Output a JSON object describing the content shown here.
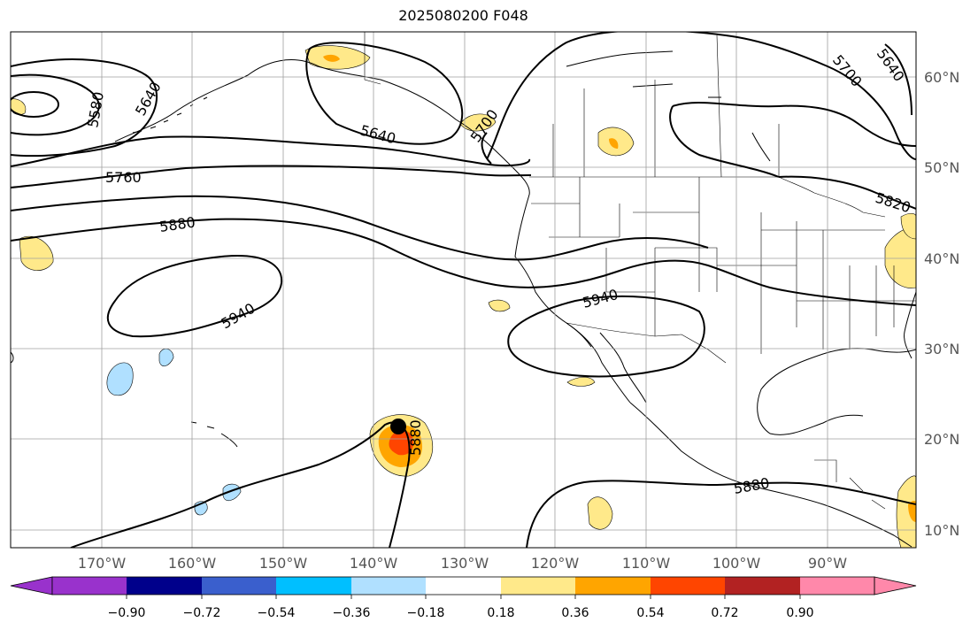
{
  "title": "2025080200 F048",
  "map": {
    "lon_labels": [
      "170°W",
      "160°W",
      "150°W",
      "140°W",
      "130°W",
      "120°W",
      "110°W",
      "100°W",
      "90°W"
    ],
    "lat_labels": [
      "60°N",
      "50°N",
      "40°N",
      "30°N",
      "20°N",
      "10°N"
    ],
    "contour_labels": [
      "5580",
      "5640",
      "5640",
      "5640",
      "5700",
      "5700",
      "5760",
      "5820",
      "5880",
      "5880",
      "5880",
      "5940",
      "5940"
    ],
    "colors": {
      "contour": "#000000",
      "grid": "#a0a0a0",
      "coast": "#000000"
    }
  },
  "colorbar": {
    "tick_labels": [
      "−0.90",
      "−0.72",
      "−0.54",
      "−0.36",
      "−0.18",
      "0.18",
      "0.36",
      "0.54",
      "0.72",
      "0.90"
    ],
    "colors": [
      "#9932cc",
      "#00008b",
      "#3a5fcd",
      "#00bfff",
      "#b0e0ff",
      "#ffffff",
      "#ffe98a",
      "#ffa500",
      "#ff4500",
      "#b22222",
      "#ff88aa"
    ],
    "extend": "both"
  },
  "storm_marker": "black-dot"
}
